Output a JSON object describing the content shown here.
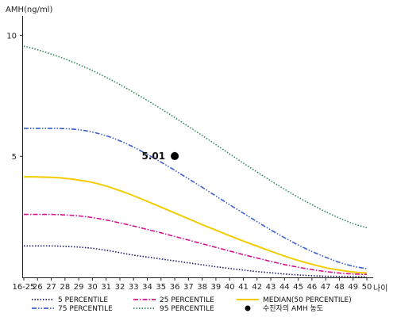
{
  "chart_data": {
    "type": "line",
    "title": "",
    "ylabel": "AMH(ng/ml)",
    "xlabel": "나이",
    "ylim": [
      0,
      10.8
    ],
    "yticks": [
      5,
      10
    ],
    "grid": false,
    "legend_position": "bottom",
    "categories": [
      "16-25",
      "26",
      "27",
      "28",
      "29",
      "30",
      "31",
      "32",
      "33",
      "34",
      "35",
      "36",
      "37",
      "38",
      "39",
      "40",
      "41",
      "42",
      "43",
      "44",
      "45",
      "46",
      "47",
      "48",
      "49",
      "50"
    ],
    "series": [
      {
        "name": "5 PERCENTILE",
        "color": "#1a1a6e",
        "dash": "dotted",
        "values": [
          1.3,
          1.3,
          1.3,
          1.28,
          1.25,
          1.2,
          1.12,
          1.02,
          0.92,
          0.84,
          0.76,
          0.68,
          0.6,
          0.52,
          0.44,
          0.37,
          0.3,
          0.24,
          0.19,
          0.14,
          0.1,
          0.07,
          0.05,
          0.04,
          0.03,
          0.02
        ]
      },
      {
        "name": "25 PERCENTILE",
        "color": "#d4148c",
        "dash": "dashdot",
        "values": [
          2.6,
          2.6,
          2.6,
          2.58,
          2.54,
          2.47,
          2.37,
          2.25,
          2.12,
          1.98,
          1.84,
          1.69,
          1.54,
          1.39,
          1.24,
          1.09,
          0.94,
          0.8,
          0.66,
          0.53,
          0.42,
          0.32,
          0.24,
          0.18,
          0.14,
          0.12
        ]
      },
      {
        "name": "MEDIAN(50 PERCENTILE)",
        "color": "#f2cc00",
        "dash": "solid",
        "values": [
          4.15,
          4.15,
          4.13,
          4.09,
          4.02,
          3.92,
          3.77,
          3.58,
          3.37,
          3.14,
          2.9,
          2.66,
          2.42,
          2.18,
          1.95,
          1.72,
          1.5,
          1.29,
          1.08,
          0.88,
          0.7,
          0.54,
          0.4,
          0.3,
          0.22,
          0.18
        ]
      },
      {
        "name": "75 PERCENTILE",
        "color": "#3a5fcd",
        "dash": "dashdotdot",
        "values": [
          6.15,
          6.15,
          6.15,
          6.14,
          6.1,
          6.0,
          5.85,
          5.64,
          5.38,
          5.08,
          4.76,
          4.42,
          4.07,
          3.72,
          3.36,
          3.0,
          2.65,
          2.3,
          1.96,
          1.64,
          1.34,
          1.07,
          0.83,
          0.62,
          0.46,
          0.36
        ]
      },
      {
        "name": "95 PERCENTILE",
        "color": "#2e8b57",
        "dash": "dotted",
        "values": [
          9.55,
          9.4,
          9.22,
          9.02,
          8.79,
          8.54,
          8.26,
          7.96,
          7.64,
          7.31,
          6.96,
          6.6,
          6.23,
          5.86,
          5.48,
          5.1,
          4.72,
          4.35,
          3.99,
          3.64,
          3.31,
          3.0,
          2.71,
          2.45,
          2.22,
          2.05
        ]
      }
    ],
    "patient_point": {
      "name": "수진자의 AMH 농도",
      "x": "36",
      "y": 5.01,
      "label": "5.01",
      "color": "#000000"
    }
  }
}
